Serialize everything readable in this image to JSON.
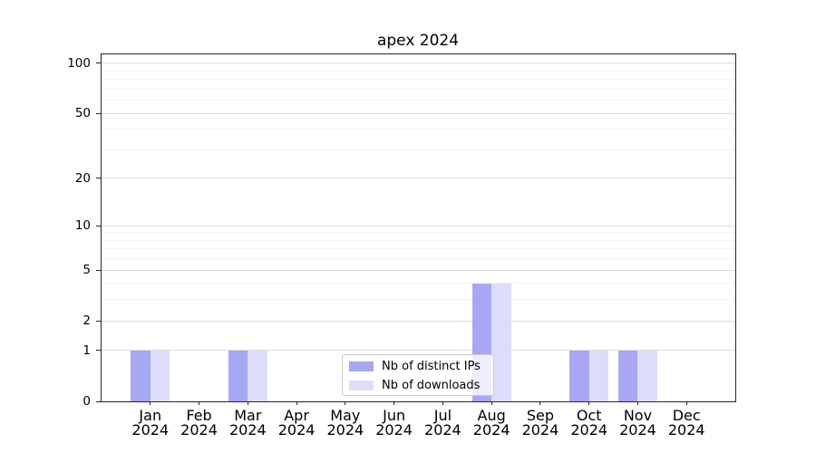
{
  "chart_data": {
    "type": "bar",
    "title": "apex 2024",
    "categories": [
      "Jan",
      "Feb",
      "Mar",
      "Apr",
      "May",
      "Jun",
      "Jul",
      "Aug",
      "Sep",
      "Oct",
      "Nov",
      "Dec"
    ],
    "x_tick_year": "2024",
    "series": [
      {
        "name": "Nb of distinct IPs",
        "color": "#a7a7f4",
        "values": [
          1,
          0,
          1,
          0,
          0,
          0,
          0,
          4,
          0,
          1,
          1,
          0
        ]
      },
      {
        "name": "Nb of downloads",
        "color": "#ddddfa",
        "values": [
          1,
          0,
          1,
          0,
          0,
          0,
          0,
          4,
          0,
          1,
          1,
          0
        ]
      }
    ],
    "xlabel": "",
    "ylabel": "",
    "y_scale": "log1p",
    "y_ticks": [
      0,
      1,
      2,
      5,
      10,
      20,
      50,
      100
    ],
    "y_minor_gridlines": [
      3,
      4,
      6,
      7,
      8,
      9,
      30,
      40,
      60,
      70,
      80,
      90
    ],
    "ylim": [
      0,
      113
    ],
    "xlim": [
      -1,
      12
    ],
    "grid": true,
    "legend_position": "lower-center"
  },
  "colors": {
    "background": "#ffffff",
    "major_grid": "#dcdcdc",
    "minor_grid": "#f2f2f2",
    "spine": "#262626",
    "text": "#000000",
    "legend_border": "#cccccc"
  }
}
